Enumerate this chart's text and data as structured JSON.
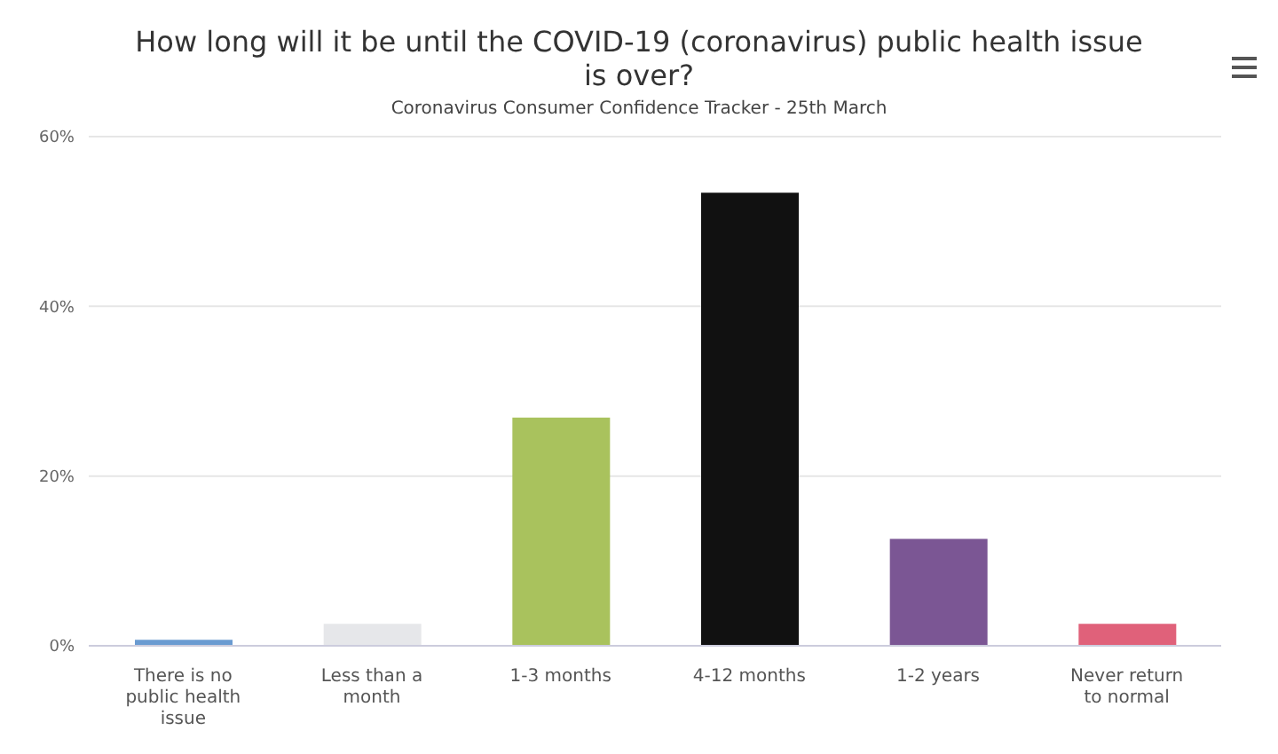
{
  "chart_data": {
    "type": "bar",
    "title": "How long will it be until the COVID-19 (coronavirus) public health issue is over?",
    "subtitle": "Coronavirus Consumer Confidence Tracker - 25th March",
    "categories": [
      "There is no public health issue",
      "Less than a month",
      "1-3 months",
      "4-12 months",
      "1-2 years",
      "Never return to normal"
    ],
    "values": [
      0.7,
      2.6,
      26.9,
      53.4,
      12.6,
      2.6
    ],
    "colors": [
      "#6a9bd1",
      "#e6e7ea",
      "#a9c25d",
      "#111111",
      "#7b5694",
      "#e0617a"
    ],
    "ylim": [
      0,
      60
    ],
    "yticks": [
      {
        "value": 0,
        "label": "0%"
      },
      {
        "value": 20,
        "label": "20%"
      },
      {
        "value": 40,
        "label": "40%"
      },
      {
        "value": 60,
        "label": "60%"
      }
    ],
    "grid": "y"
  }
}
